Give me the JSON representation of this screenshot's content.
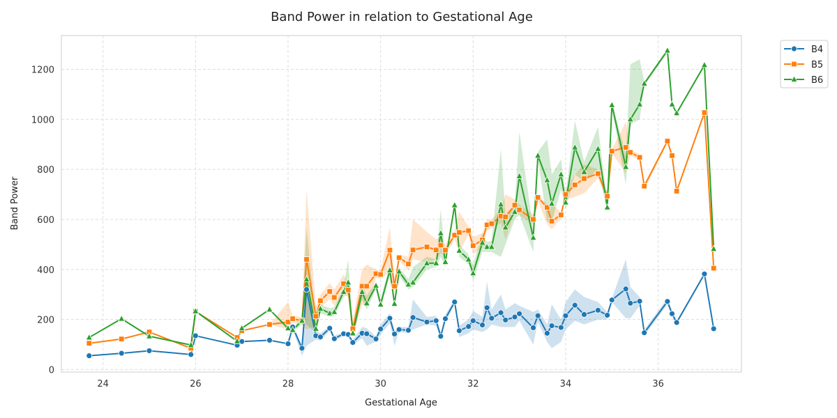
{
  "chart_data": {
    "type": "line",
    "title": "Band Power in relation to Gestational Age",
    "xlabel": "Gestational Age",
    "ylabel": "Band Power",
    "xlim": [
      23.1,
      37.8
    ],
    "ylim": [
      -10,
      1335
    ],
    "xticks": [
      24,
      26,
      28,
      30,
      32,
      34,
      36
    ],
    "yticks": [
      0,
      200,
      400,
      600,
      800,
      1000,
      1200
    ],
    "grid": true,
    "legend_position": "outside-top-right",
    "x": [
      23.7,
      24.4,
      25.0,
      25.9,
      26.0,
      26.9,
      27.0,
      27.6,
      28.0,
      28.1,
      28.3,
      28.4,
      28.6,
      28.7,
      28.9,
      29.0,
      29.2,
      29.3,
      29.4,
      29.6,
      29.7,
      29.9,
      30.0,
      30.2,
      30.3,
      30.4,
      30.6,
      30.7,
      31.0,
      31.2,
      31.3,
      31.4,
      31.6,
      31.7,
      31.9,
      32.0,
      32.2,
      32.3,
      32.4,
      32.6,
      32.7,
      32.9,
      33.0,
      33.3,
      33.4,
      33.6,
      33.7,
      33.9,
      34.0,
      34.2,
      34.4,
      34.7,
      34.9,
      35.0,
      35.3,
      35.4,
      35.6,
      35.7,
      36.2,
      36.3,
      36.4,
      37.0,
      37.2
    ],
    "series": [
      {
        "name": "B4",
        "color": "#1f77b4",
        "marker": "circle",
        "values": [
          55,
          65,
          75,
          60,
          135,
          97,
          112,
          117,
          103,
          170,
          85,
          320,
          135,
          130,
          165,
          123,
          143,
          140,
          108,
          145,
          143,
          122,
          162,
          205,
          142,
          160,
          157,
          208,
          190,
          195,
          133,
          203,
          270,
          155,
          172,
          195,
          178,
          247,
          205,
          227,
          198,
          210,
          223,
          167,
          215,
          145,
          175,
          168,
          215,
          257,
          220,
          237,
          217,
          278,
          322,
          265,
          273,
          147,
          272,
          223,
          188,
          382,
          163
        ],
        "band_upper": [
          55,
          65,
          75,
          60,
          135,
          97,
          112,
          117,
          103,
          180,
          95,
          345,
          155,
          145,
          175,
          135,
          150,
          150,
          118,
          170,
          165,
          132,
          180,
          225,
          155,
          170,
          170,
          280,
          210,
          215,
          145,
          220,
          280,
          175,
          200,
          235,
          210,
          350,
          240,
          300,
          240,
          265,
          255,
          230,
          240,
          180,
          260,
          200,
          270,
          320,
          290,
          270,
          230,
          285,
          440,
          330,
          290,
          160,
          285,
          235,
          195,
          385,
          170
        ],
        "band_lower": [
          55,
          65,
          75,
          60,
          135,
          97,
          112,
          117,
          103,
          160,
          55,
          95,
          120,
          115,
          155,
          112,
          135,
          130,
          100,
          125,
          95,
          112,
          140,
          185,
          95,
          150,
          145,
          160,
          180,
          175,
          120,
          190,
          260,
          130,
          145,
          160,
          150,
          160,
          180,
          170,
          170,
          170,
          195,
          100,
          190,
          110,
          85,
          110,
          160,
          195,
          180,
          200,
          200,
          270,
          205,
          205,
          255,
          135,
          260,
          210,
          180,
          375,
          155
        ]
      },
      {
        "name": "B5",
        "color": "#ff7f0e",
        "marker": "square",
        "values": [
          105,
          122,
          150,
          85,
          232,
          128,
          155,
          180,
          190,
          203,
          195,
          440,
          213,
          275,
          312,
          288,
          343,
          318,
          163,
          333,
          333,
          383,
          380,
          477,
          333,
          447,
          422,
          478,
          490,
          478,
          497,
          477,
          537,
          548,
          555,
          495,
          518,
          578,
          583,
          613,
          610,
          657,
          638,
          600,
          688,
          648,
          593,
          618,
          700,
          738,
          763,
          783,
          693,
          873,
          888,
          868,
          848,
          733,
          913,
          855,
          713,
          1027,
          405
        ],
        "band_upper": [
          105,
          122,
          150,
          85,
          232,
          128,
          155,
          180,
          270,
          215,
          210,
          720,
          250,
          300,
          345,
          320,
          380,
          345,
          200,
          400,
          420,
          400,
          395,
          570,
          360,
          460,
          450,
          600,
          550,
          520,
          530,
          500,
          555,
          630,
          570,
          530,
          545,
          600,
          600,
          640,
          700,
          680,
          660,
          620,
          700,
          660,
          660,
          630,
          720,
          780,
          820,
          800,
          710,
          880,
          990,
          880,
          860,
          745,
          920,
          865,
          720,
          1030,
          410
        ],
        "band_lower": [
          105,
          122,
          150,
          85,
          232,
          128,
          155,
          180,
          160,
          190,
          180,
          160,
          175,
          250,
          280,
          255,
          305,
          290,
          130,
          260,
          250,
          365,
          365,
          390,
          305,
          435,
          395,
          440,
          430,
          440,
          465,
          455,
          520,
          470,
          540,
          460,
          490,
          555,
          565,
          585,
          520,
          635,
          615,
          580,
          675,
          580,
          560,
          605,
          680,
          690,
          705,
          765,
          675,
          865,
          785,
          855,
          835,
          720,
          905,
          845,
          705,
          1020,
          400
        ]
      },
      {
        "name": "B6",
        "color": "#2ca02c",
        "marker": "triangle",
        "values": [
          128,
          203,
          133,
          98,
          233,
          113,
          165,
          240,
          165,
          158,
          195,
          360,
          163,
          243,
          225,
          230,
          310,
          348,
          145,
          310,
          265,
          335,
          260,
          397,
          263,
          392,
          340,
          348,
          425,
          425,
          545,
          430,
          657,
          475,
          440,
          385,
          507,
          490,
          490,
          660,
          568,
          630,
          773,
          527,
          855,
          757,
          663,
          780,
          668,
          888,
          790,
          882,
          648,
          1057,
          810,
          1000,
          1060,
          1143,
          1275,
          1060,
          1025,
          1217,
          482
        ],
        "band_upper": [
          128,
          203,
          133,
          98,
          233,
          113,
          165,
          240,
          170,
          165,
          210,
          565,
          185,
          260,
          245,
          250,
          330,
          440,
          165,
          340,
          295,
          350,
          280,
          420,
          280,
          410,
          360,
          410,
          450,
          440,
          640,
          450,
          670,
          500,
          460,
          420,
          545,
          510,
          515,
          880,
          620,
          660,
          950,
          560,
          870,
          920,
          780,
          840,
          700,
          995,
          830,
          970,
          665,
          1070,
          860,
          1220,
          1240,
          1150,
          1285,
          1065,
          1030,
          1220,
          490
        ],
        "band_lower": [
          128,
          203,
          133,
          98,
          233,
          113,
          165,
          240,
          155,
          150,
          180,
          180,
          145,
          225,
          210,
          215,
          290,
          300,
          130,
          280,
          240,
          320,
          245,
          375,
          245,
          375,
          320,
          330,
          400,
          410,
          450,
          410,
          645,
          450,
          420,
          355,
          470,
          470,
          470,
          450,
          500,
          600,
          620,
          470,
          840,
          590,
          590,
          720,
          640,
          780,
          750,
          800,
          630,
          1040,
          740,
          980,
          1000,
          1135,
          1265,
          1055,
          1020,
          1210,
          475
        ]
      }
    ]
  }
}
